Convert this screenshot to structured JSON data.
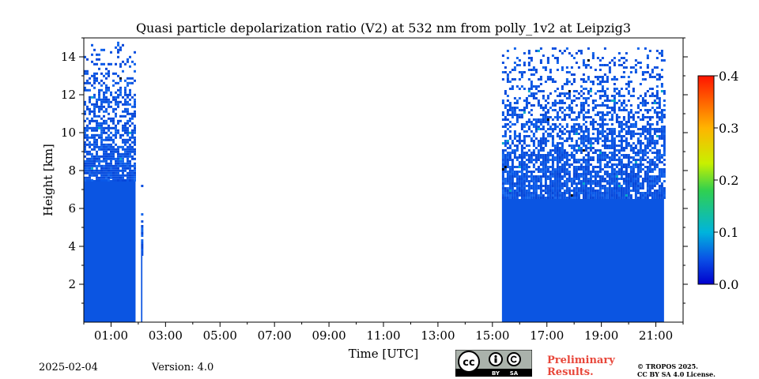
{
  "chart_data": {
    "type": "heatmap",
    "title": "Quasi particle depolarization ratio (V2) at 532 nm from polly_1v2 at Leipzig3",
    "xlabel": "Time [UTC]",
    "ylabel": "Height [km]",
    "xlim": [
      0.0,
      22.0
    ],
    "ylim": [
      0.0,
      15.0
    ],
    "xticks": [
      {
        "value": 1,
        "label": "01:00"
      },
      {
        "value": 3,
        "label": "03:00"
      },
      {
        "value": 5,
        "label": "05:00"
      },
      {
        "value": 7,
        "label": "07:00"
      },
      {
        "value": 9,
        "label": "09:00"
      },
      {
        "value": 11,
        "label": "11:00"
      },
      {
        "value": 13,
        "label": "13:00"
      },
      {
        "value": 15,
        "label": "15:00"
      },
      {
        "value": 17,
        "label": "17:00"
      },
      {
        "value": 19,
        "label": "19:00"
      },
      {
        "value": 21,
        "label": "21:00"
      }
    ],
    "yticks": [
      {
        "value": 2,
        "label": "2"
      },
      {
        "value": 4,
        "label": "4"
      },
      {
        "value": 6,
        "label": "6"
      },
      {
        "value": 8,
        "label": "8"
      },
      {
        "value": 10,
        "label": "10"
      },
      {
        "value": 12,
        "label": "12"
      },
      {
        "value": 14,
        "label": "14"
      }
    ],
    "colorbar": {
      "range": [
        0.0,
        0.4
      ],
      "ticks": [
        {
          "value": 0.0,
          "label": "0.0"
        },
        {
          "value": 0.1,
          "label": "0.1"
        },
        {
          "value": 0.2,
          "label": "0.2"
        },
        {
          "value": 0.3,
          "label": "0.3"
        },
        {
          "value": 0.4,
          "label": "0.4"
        }
      ],
      "colors": [
        "#0000cd",
        "#0a64e6",
        "#00c8c8",
        "#40e040",
        "#ffff00",
        "#ffa000",
        "#ff2000"
      ]
    },
    "data_blocks": [
      {
        "t_start": 0.0,
        "t_end": 1.9,
        "solid_top_km": 7.5,
        "sparse_top_km": 14.8,
        "typical_value": 0.03
      },
      {
        "t_start": 2.1,
        "t_end": 2.15,
        "solid_top_km": 3.5,
        "sparse_top_km": 7.5,
        "typical_value": 0.03
      },
      {
        "t_start": 15.35,
        "t_end": 21.3,
        "solid_top_km": 6.5,
        "sparse_top_km": 14.5,
        "typical_value": 0.03
      }
    ],
    "grid": false
  },
  "footer": {
    "date": "2025-02-04",
    "version": "Version: 4.0",
    "preliminary_line1": "Preliminary",
    "preliminary_line2": "Results.",
    "copyright_line1": "© TROPOS 2025.",
    "copyright_line2": "CC BY SA 4.0 License.",
    "cc_label": "cc",
    "by_label": "BY",
    "sa_label": "SA"
  }
}
